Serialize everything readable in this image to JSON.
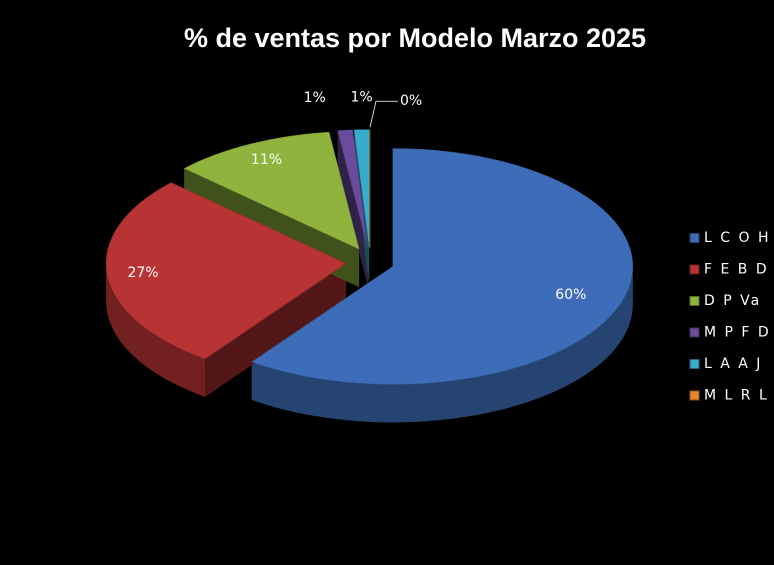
{
  "chart_data": {
    "type": "pie3d",
    "title": "% de ventas por Modelo Marzo 2025",
    "categories": [
      "L C O H",
      "F E B D",
      "D P Va",
      "M P F D",
      "L A A J",
      "M L R L"
    ],
    "values": [
      60,
      27,
      11,
      1,
      1,
      0
    ],
    "value_labels": [
      "60%",
      "27%",
      "11%",
      "1%",
      "1%",
      "0%"
    ],
    "colors": [
      "#3d6db8",
      "#b83434",
      "#90b33e",
      "#6b4c9c",
      "#3aaccb",
      "#e8862e"
    ],
    "legend": "right"
  }
}
